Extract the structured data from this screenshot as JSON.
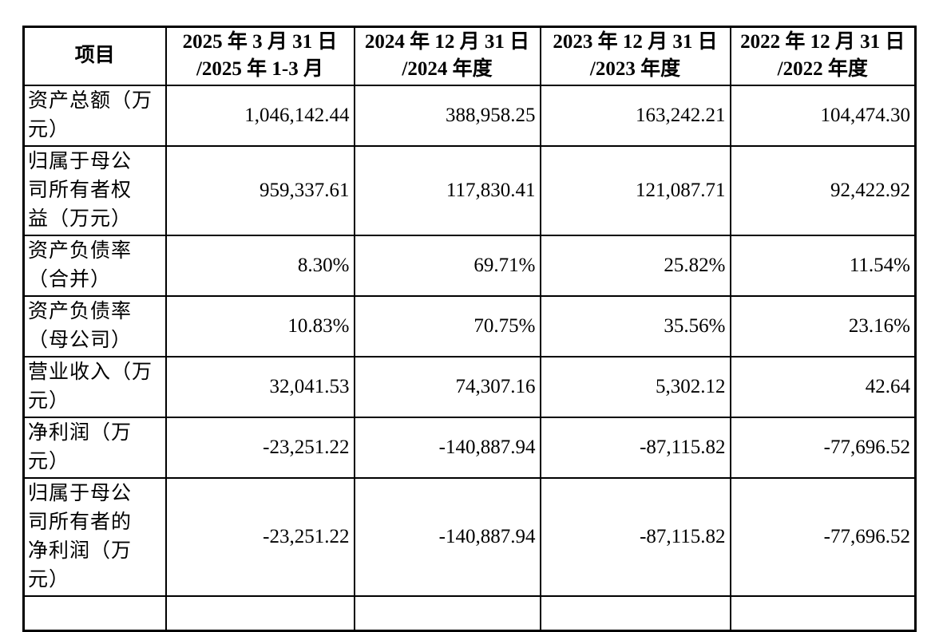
{
  "page": {
    "background_color": "#ffffff",
    "text_color": "#000000",
    "border_color": "#000000"
  },
  "table": {
    "header": {
      "item": "项目",
      "periods": [
        "2025 年 3 月 31 日\n/2025 年 1-3 月",
        "2024 年 12 月 31 日\n/2024 年度",
        "2023 年 12 月 31 日\n/2023 年度",
        "2022 年 12 月 31 日\n/2022 年度"
      ]
    },
    "rows": [
      {
        "label": "资产总额（万\n元）",
        "values": [
          "1,046,142.44",
          "388,958.25",
          "163,242.21",
          "104,474.30"
        ]
      },
      {
        "label": "归属于母公\n司所有者权\n益（万元）",
        "values": [
          "959,337.61",
          "117,830.41",
          "121,087.71",
          "92,422.92"
        ]
      },
      {
        "label": "资产负债率\n（合并）",
        "values": [
          "8.30%",
          "69.71%",
          "25.82%",
          "11.54%"
        ]
      },
      {
        "label": "资产负债率\n（母公司）",
        "values": [
          "10.83%",
          "70.75%",
          "35.56%",
          "23.16%"
        ]
      },
      {
        "label": "营业收入（万\n元）",
        "values": [
          "32,041.53",
          "74,307.16",
          "5,302.12",
          "42.64"
        ]
      },
      {
        "label": "净利润（万\n元）",
        "values": [
          "-23,251.22",
          "-140,887.94",
          "-87,115.82",
          "-77,696.52"
        ]
      },
      {
        "label": "归属于母公\n司所有者的\n净利润（万\n元）",
        "values": [
          "-23,251.22",
          "-140,887.94",
          "-87,115.82",
          "-77,696.52"
        ]
      }
    ]
  }
}
